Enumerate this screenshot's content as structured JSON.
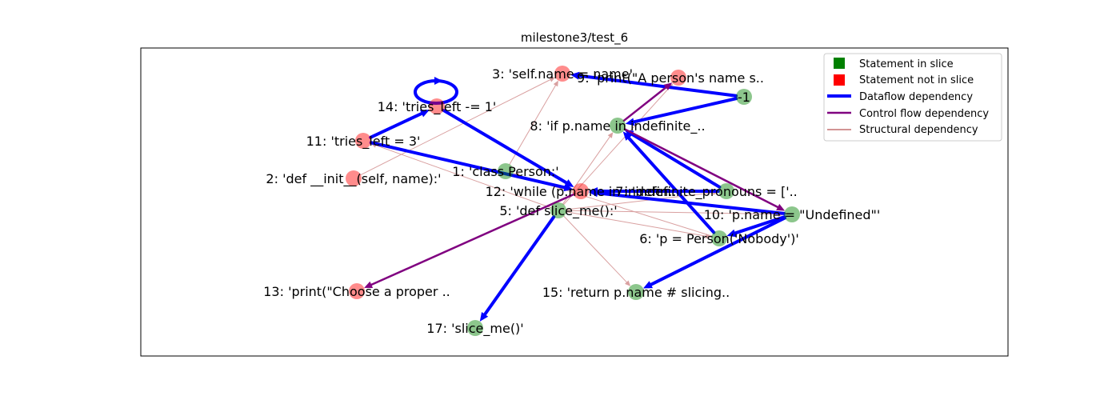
{
  "title": "milestone3/test_6",
  "legend": {
    "in_slice": "Statement in slice",
    "not_in_slice": "Statement not in slice",
    "dataflow": "Dataflow dependency",
    "controlflow": "Control flow dependency",
    "structural": "Structural dependency"
  },
  "colors": {
    "in_slice": "#008000",
    "not_in_slice": "#ff0000",
    "dataflow": "#0000ff",
    "controlflow": "#800080",
    "structural": "#a52a2a"
  },
  "nodes": [
    {
      "id": "n1",
      "label": "1: 'class Person:'",
      "in_slice": true
    },
    {
      "id": "n2",
      "label": "2: 'def __init__(self, name):'",
      "in_slice": false
    },
    {
      "id": "n3",
      "label": "3: 'self.name = name'",
      "in_slice": false
    },
    {
      "id": "n5",
      "label": "5: 'def slice_me():'",
      "in_slice": true
    },
    {
      "id": "n6",
      "label": "6: 'p = Person('Nobody')'",
      "in_slice": true
    },
    {
      "id": "n7",
      "label": "7: 'indefinite_pronouns = ['..",
      "in_slice": true
    },
    {
      "id": "n8",
      "label": "8: 'if p.name in indefinite_..",
      "in_slice": true
    },
    {
      "id": "n9",
      "label": "9: 'print(\"A person's name s..",
      "in_slice": false
    },
    {
      "id": "n10",
      "label": "10: 'p.name = \"Undefined\"'",
      "in_slice": true
    },
    {
      "id": "n11",
      "label": "11: 'tries_left = 3'",
      "in_slice": false
    },
    {
      "id": "n12",
      "label": "12: 'while (p.name in indefin..",
      "in_slice": false
    },
    {
      "id": "n13",
      "label": "13: 'print(\"Choose a proper ..",
      "in_slice": false
    },
    {
      "id": "n14",
      "label": "14: 'tries_left -= 1'",
      "in_slice": false
    },
    {
      "id": "n15",
      "label": "15: 'return p.name # slicing..",
      "in_slice": true
    },
    {
      "id": "n17",
      "label": "17: 'slice_me()'",
      "in_slice": true
    },
    {
      "id": "nm1",
      "label": "-1",
      "in_slice": true
    }
  ],
  "edges": [
    {
      "from": "n2",
      "to": "n3",
      "kind": "structural"
    },
    {
      "from": "n1",
      "to": "n3",
      "kind": "structural"
    },
    {
      "from": "n5",
      "to": "n8",
      "kind": "structural"
    },
    {
      "from": "n5",
      "to": "n9",
      "kind": "structural"
    },
    {
      "from": "n5",
      "to": "n15",
      "kind": "structural"
    },
    {
      "from": "n5",
      "to": "n11",
      "kind": "structural"
    },
    {
      "from": "n5",
      "to": "n10",
      "kind": "structural"
    },
    {
      "from": "n6",
      "to": "n1",
      "kind": "structural"
    },
    {
      "from": "n5",
      "to": "n6",
      "kind": "structural"
    },
    {
      "from": "n5",
      "to": "n7",
      "kind": "structural"
    },
    {
      "from": "nm1",
      "to": "n3",
      "kind": "dataflow"
    },
    {
      "from": "nm1",
      "to": "n8",
      "kind": "dataflow"
    },
    {
      "from": "n11",
      "to": "n14",
      "kind": "dataflow"
    },
    {
      "from": "n14",
      "to": "n14",
      "kind": "dataflow"
    },
    {
      "from": "n11",
      "to": "n12",
      "kind": "dataflow"
    },
    {
      "from": "n14",
      "to": "n12",
      "kind": "dataflow"
    },
    {
      "from": "n7",
      "to": "n12",
      "kind": "dataflow"
    },
    {
      "from": "n10",
      "to": "n12",
      "kind": "dataflow"
    },
    {
      "from": "n6",
      "to": "n8",
      "kind": "dataflow"
    },
    {
      "from": "n7",
      "to": "n8",
      "kind": "dataflow"
    },
    {
      "from": "n10",
      "to": "n6",
      "kind": "dataflow"
    },
    {
      "from": "n10",
      "to": "n15",
      "kind": "dataflow"
    },
    {
      "from": "n5",
      "to": "n17",
      "kind": "dataflow"
    },
    {
      "from": "n8",
      "to": "n10",
      "kind": "controlflow"
    },
    {
      "from": "n8",
      "to": "n9",
      "kind": "controlflow"
    },
    {
      "from": "n12",
      "to": "n13",
      "kind": "controlflow"
    }
  ]
}
